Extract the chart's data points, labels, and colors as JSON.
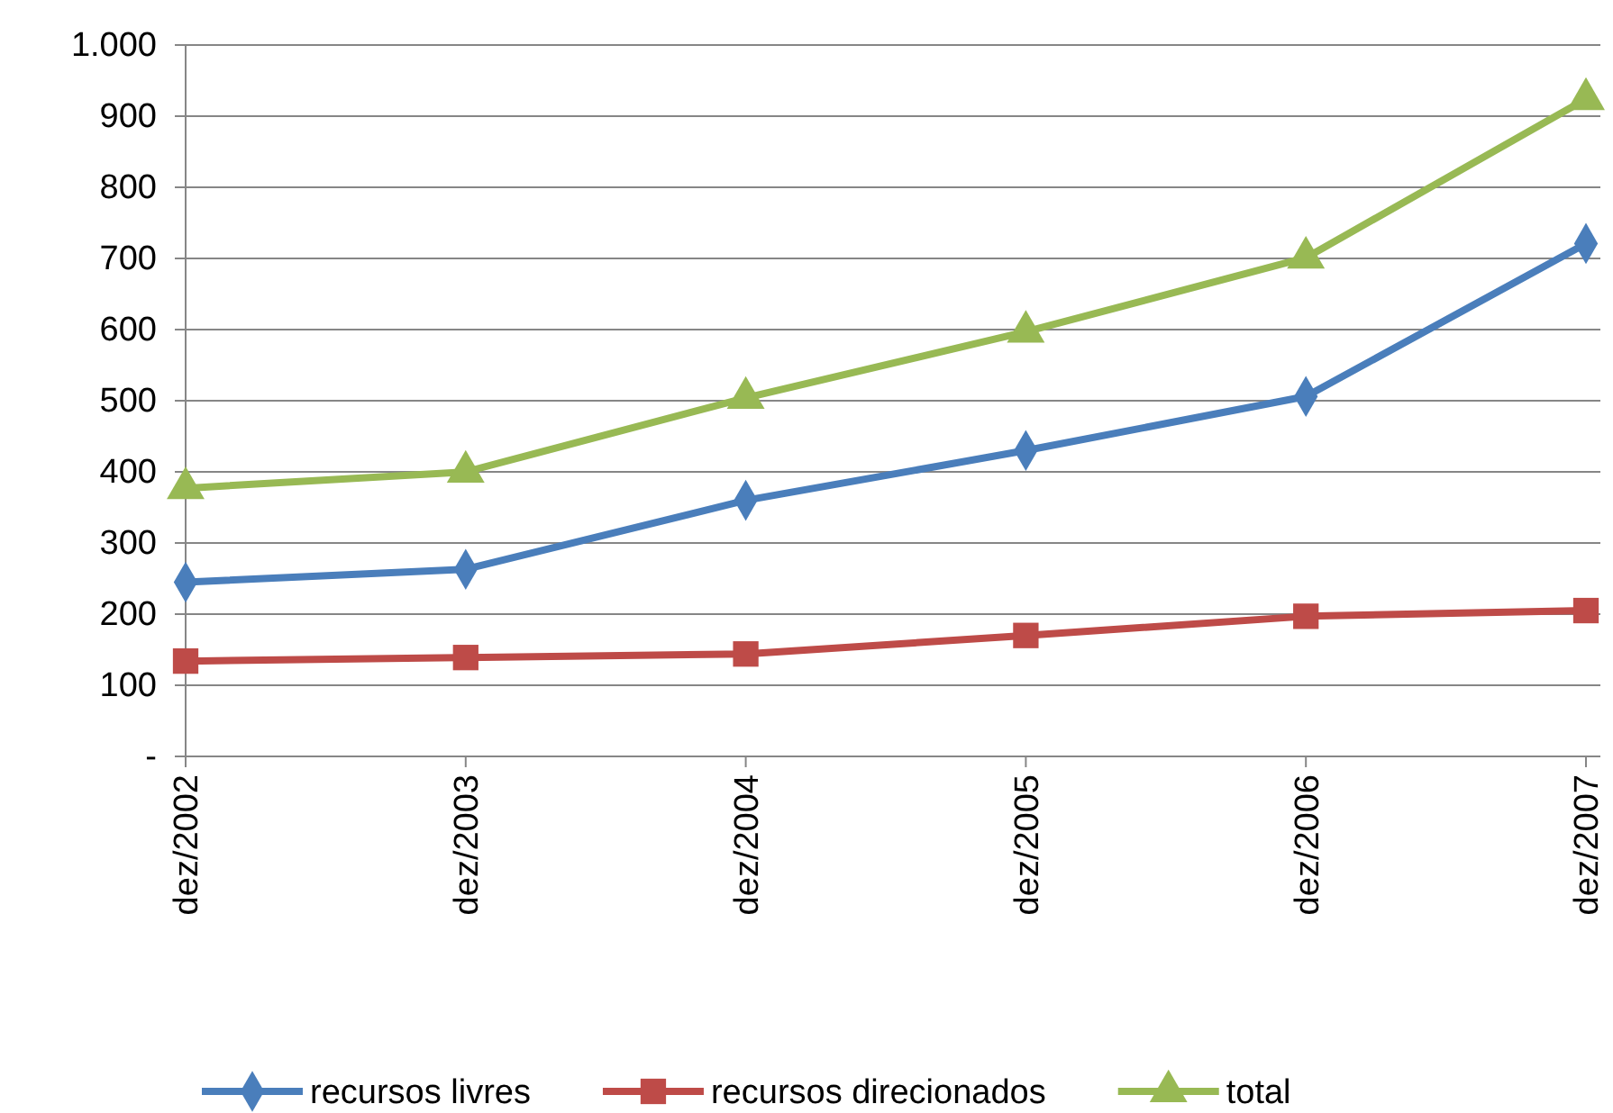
{
  "chart_data": {
    "type": "line",
    "categories": [
      "dez/2002",
      "dez/2003",
      "dez/2004",
      "dez/2005",
      "dez/2006",
      "dez/2007"
    ],
    "series": [
      {
        "name": "recursos livres",
        "color": "#4a7ebb",
        "marker": "diamond",
        "values": [
          245,
          263,
          360,
          430,
          506,
          721
        ]
      },
      {
        "name": "recursos direcionados",
        "color": "#be4b48",
        "marker": "square",
        "values": [
          134,
          139,
          144,
          170,
          197,
          205
        ]
      },
      {
        "name": "total",
        "color": "#98b954",
        "marker": "triangle",
        "values": [
          377,
          400,
          504,
          597,
          701,
          924
        ]
      }
    ],
    "ylim": [
      0,
      1000
    ],
    "yticks": [
      {
        "value": 0,
        "label": "-"
      },
      100,
      200,
      300,
      400,
      500,
      600,
      700,
      800,
      900,
      {
        "value": 1000,
        "label": "1.000"
      }
    ],
    "grid": "y",
    "legend": "bottom"
  }
}
